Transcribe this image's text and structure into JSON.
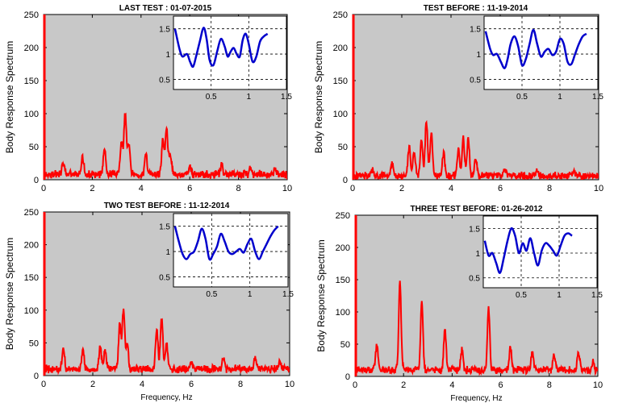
{
  "chart_data": [
    {
      "type": "line",
      "title": "LAST TEST : 01-07-2015",
      "xlabel": "",
      "ylabel": "Body Response Spectrum",
      "xlim": [
        0,
        10
      ],
      "ylim": [
        0,
        250
      ],
      "xticks": [
        "0",
        "2",
        "4",
        "6",
        "8",
        "10"
      ],
      "yticks": [
        "0",
        "50",
        "100",
        "150",
        "200",
        "250"
      ],
      "series": [
        {
          "color": "#ff0000",
          "baseline": 8,
          "peaks": [
            [
              0.8,
              18
            ],
            [
              1.6,
              28
            ],
            [
              2.5,
              38
            ],
            [
              3.2,
              50
            ],
            [
              3.35,
              92
            ],
            [
              3.5,
              45
            ],
            [
              4.2,
              30
            ],
            [
              4.9,
              55
            ],
            [
              5.05,
              70
            ],
            [
              5.2,
              30
            ],
            [
              6.0,
              12
            ],
            [
              7.3,
              14
            ],
            [
              8.5,
              10
            ],
            [
              9.5,
              8
            ]
          ]
        }
      ],
      "inset": {
        "type": "line",
        "xlim": [
          0,
          1.5
        ],
        "ylim": [
          0.3,
          1.75
        ],
        "xticks": [
          "0.5",
          "1",
          "1.5"
        ],
        "yticks": [
          "0.5",
          "1",
          "1.5"
        ],
        "grid": true,
        "color": "#0000cc",
        "x": [
          0.02,
          0.08,
          0.12,
          0.18,
          0.22,
          0.26,
          0.3,
          0.35,
          0.4,
          0.44,
          0.48,
          0.53,
          0.58,
          0.63,
          0.68,
          0.72,
          0.76,
          0.8,
          0.84,
          0.88,
          0.92,
          0.96,
          1.0,
          1.05,
          1.1,
          1.15,
          1.2,
          1.25
        ],
        "y": [
          1.5,
          1.1,
          0.95,
          1.0,
          0.85,
          0.75,
          0.95,
          1.25,
          1.52,
          1.3,
          0.88,
          0.78,
          1.05,
          1.3,
          1.15,
          0.95,
          1.05,
          1.12,
          1.0,
          0.95,
          1.28,
          1.4,
          1.2,
          0.85,
          0.95,
          1.25,
          1.35,
          1.4
        ]
      }
    },
    {
      "type": "line",
      "title": "TEST BEFORE : 11-19-2014",
      "xlabel": "",
      "ylabel": "Body Response Spectrum",
      "xlim": [
        0,
        10
      ],
      "ylim": [
        0,
        250
      ],
      "xticks": [
        "0",
        "2",
        "4",
        "6",
        "8",
        "10"
      ],
      "yticks": [
        "0",
        "50",
        "100",
        "150",
        "200",
        "250"
      ],
      "series": [
        {
          "color": "#ff0000",
          "baseline": 6,
          "peaks": [
            [
              0.8,
              10
            ],
            [
              1.6,
              18
            ],
            [
              2.3,
              45
            ],
            [
              2.5,
              40
            ],
            [
              2.8,
              55
            ],
            [
              3.0,
              85
            ],
            [
              3.2,
              65
            ],
            [
              3.7,
              35
            ],
            [
              4.3,
              40
            ],
            [
              4.5,
              55
            ],
            [
              4.7,
              58
            ],
            [
              5.0,
              25
            ],
            [
              6.2,
              10
            ],
            [
              7.5,
              8
            ],
            [
              9.0,
              8
            ]
          ]
        }
      ],
      "inset": {
        "type": "line",
        "xlim": [
          0,
          1.5
        ],
        "ylim": [
          0.3,
          1.75
        ],
        "xticks": [
          "0.5",
          "1",
          "1.5"
        ],
        "yticks": [
          "0.5",
          "1",
          "1.5"
        ],
        "grid": true,
        "color": "#0000cc",
        "x": [
          0.02,
          0.08,
          0.12,
          0.17,
          0.22,
          0.27,
          0.31,
          0.35,
          0.4,
          0.45,
          0.5,
          0.55,
          0.6,
          0.65,
          0.7,
          0.75,
          0.8,
          0.85,
          0.9,
          0.95,
          1.0,
          1.05,
          1.1,
          1.15,
          1.2,
          1.25,
          1.3,
          1.35
        ],
        "y": [
          1.45,
          1.1,
          0.98,
          1.0,
          0.85,
          0.72,
          0.9,
          1.2,
          1.35,
          1.15,
          0.78,
          0.9,
          1.2,
          1.48,
          1.2,
          0.95,
          1.05,
          1.1,
          0.98,
          1.05,
          1.3,
          1.2,
          0.85,
          0.8,
          1.0,
          1.2,
          1.35,
          1.4
        ]
      }
    },
    {
      "type": "line",
      "title": "TWO TEST BEFORE : 11-12-2014",
      "xlabel": "Frequency, Hz",
      "ylabel": "Body Response Spectrum",
      "xlim": [
        0,
        10
      ],
      "ylim": [
        0,
        250
      ],
      "xticks": [
        "0",
        "2",
        "4",
        "6",
        "8",
        "10"
      ],
      "yticks": [
        "0",
        "50",
        "100",
        "150",
        "200",
        "250"
      ],
      "series": [
        {
          "color": "#ff0000",
          "baseline": 10,
          "peaks": [
            [
              0.8,
              30
            ],
            [
              1.6,
              25
            ],
            [
              2.3,
              35
            ],
            [
              2.5,
              28
            ],
            [
              3.1,
              70
            ],
            [
              3.25,
              92
            ],
            [
              3.4,
              40
            ],
            [
              4.6,
              60
            ],
            [
              4.8,
              78
            ],
            [
              5.0,
              40
            ],
            [
              6.0,
              14
            ],
            [
              7.3,
              18
            ],
            [
              8.6,
              14
            ],
            [
              9.6,
              10
            ]
          ]
        }
      ],
      "inset": {
        "type": "line",
        "xlim": [
          0,
          1.5
        ],
        "ylim": [
          0.3,
          1.75
        ],
        "xticks": [
          "0.5",
          "1",
          "1.5"
        ],
        "yticks": [
          "0.5",
          "1",
          "1.5"
        ],
        "grid": true,
        "color": "#0000cc",
        "x": [
          0.02,
          0.07,
          0.12,
          0.17,
          0.22,
          0.27,
          0.32,
          0.37,
          0.42,
          0.47,
          0.52,
          0.57,
          0.62,
          0.67,
          0.72,
          0.77,
          0.82,
          0.87,
          0.92,
          0.97,
          1.02,
          1.07,
          1.12,
          1.17,
          1.22,
          1.27,
          1.32,
          1.37
        ],
        "y": [
          1.5,
          1.2,
          0.95,
          0.85,
          0.95,
          1.0,
          1.2,
          1.45,
          1.25,
          0.85,
          0.95,
          1.1,
          1.35,
          1.2,
          1.0,
          0.95,
          1.0,
          1.05,
          0.98,
          1.15,
          1.25,
          1.0,
          0.85,
          1.0,
          1.15,
          1.3,
          1.42,
          1.5
        ]
      }
    },
    {
      "type": "line",
      "title": "THREE TEST BEFORE:   01-26-2012",
      "xlabel": "Frequency, Hz",
      "ylabel": "Body Response Spectrum",
      "xlim": [
        0,
        10
      ],
      "ylim": [
        0,
        250
      ],
      "xticks": [
        "0",
        "2",
        "4",
        "6",
        "8",
        "10"
      ],
      "yticks": [
        "0",
        "50",
        "100",
        "150",
        "200",
        "250"
      ],
      "series": [
        {
          "color": "#ff0000",
          "baseline": 10,
          "peaks": [
            [
              0.9,
              40
            ],
            [
              1.85,
              135
            ],
            [
              2.75,
              105
            ],
            [
              3.7,
              65
            ],
            [
              4.4,
              30
            ],
            [
              5.5,
              95
            ],
            [
              6.4,
              35
            ],
            [
              7.3,
              30
            ],
            [
              8.2,
              22
            ],
            [
              9.2,
              28
            ],
            [
              9.8,
              12
            ]
          ]
        }
      ],
      "inset": {
        "type": "line",
        "xlim": [
          0,
          1.5
        ],
        "ylim": [
          0.3,
          1.75
        ],
        "xticks": [
          "0.5",
          "1",
          "1.5"
        ],
        "yticks": [
          "0.5",
          "1",
          "1.5"
        ],
        "grid": true,
        "color": "#0000cc",
        "x": [
          0.02,
          0.07,
          0.12,
          0.17,
          0.22,
          0.27,
          0.32,
          0.37,
          0.42,
          0.47,
          0.52,
          0.57,
          0.62,
          0.67,
          0.72,
          0.77,
          0.82,
          0.87,
          0.92,
          0.97,
          1.02,
          1.07,
          1.12,
          1.17
        ],
        "y": [
          1.25,
          0.95,
          1.0,
          0.8,
          0.6,
          0.9,
          1.25,
          1.5,
          1.35,
          1.0,
          1.2,
          1.05,
          1.3,
          1.0,
          0.75,
          1.05,
          1.2,
          1.15,
          1.05,
          0.95,
          1.15,
          1.35,
          1.4,
          1.35
        ]
      }
    }
  ]
}
